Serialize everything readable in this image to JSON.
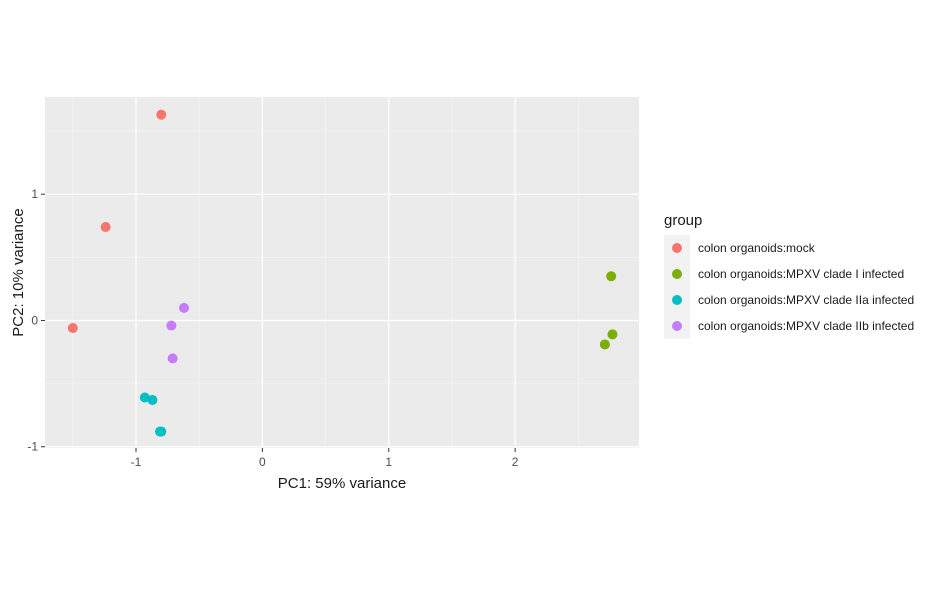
{
  "chart_data": {
    "type": "scatter",
    "title": "",
    "xlabel": "PC1: 59% variance",
    "ylabel": "PC2: 10% variance",
    "xlim": [
      -1.72,
      2.98
    ],
    "ylim": [
      -1.01,
      1.77
    ],
    "x_ticks": [
      -1,
      0,
      1,
      2
    ],
    "y_ticks": [
      -1,
      0,
      1
    ],
    "x_tick_labels": [
      "-1",
      "0",
      "1",
      "2"
    ],
    "y_tick_labels": [
      "-1",
      "0",
      "1"
    ],
    "grid": true,
    "legend": {
      "title": "group",
      "position": "right"
    },
    "series": [
      {
        "name": "colon organoids:mock",
        "color": "#F8766D",
        "points": [
          {
            "x": -0.8,
            "y": 1.63
          },
          {
            "x": -1.24,
            "y": 0.74
          },
          {
            "x": -1.5,
            "y": -0.06
          }
        ]
      },
      {
        "name": "colon organoids:MPXV clade I infected",
        "color": "#7CAE00",
        "points": [
          {
            "x": 2.76,
            "y": 0.35
          },
          {
            "x": 2.77,
            "y": -0.11
          },
          {
            "x": 2.71,
            "y": -0.19
          }
        ]
      },
      {
        "name": "colon organoids:MPXV clade IIa infected",
        "color": "#00BFC4",
        "points": [
          {
            "x": -0.93,
            "y": -0.61
          },
          {
            "x": -0.87,
            "y": -0.63
          },
          {
            "x": -0.8,
            "y": -0.88
          },
          {
            "x": -0.81,
            "y": -0.88
          }
        ]
      },
      {
        "name": "colon organoids:MPXV clade IIb infected",
        "color": "#C77CFF",
        "points": [
          {
            "x": -0.62,
            "y": 0.1
          },
          {
            "x": -0.72,
            "y": -0.04
          },
          {
            "x": -0.71,
            "y": -0.3
          }
        ]
      }
    ]
  },
  "colors": {
    "panel_background": "#EBEBEB",
    "grid_major": "#FFFFFF",
    "legend_key_background": "#F2F2F2"
  }
}
